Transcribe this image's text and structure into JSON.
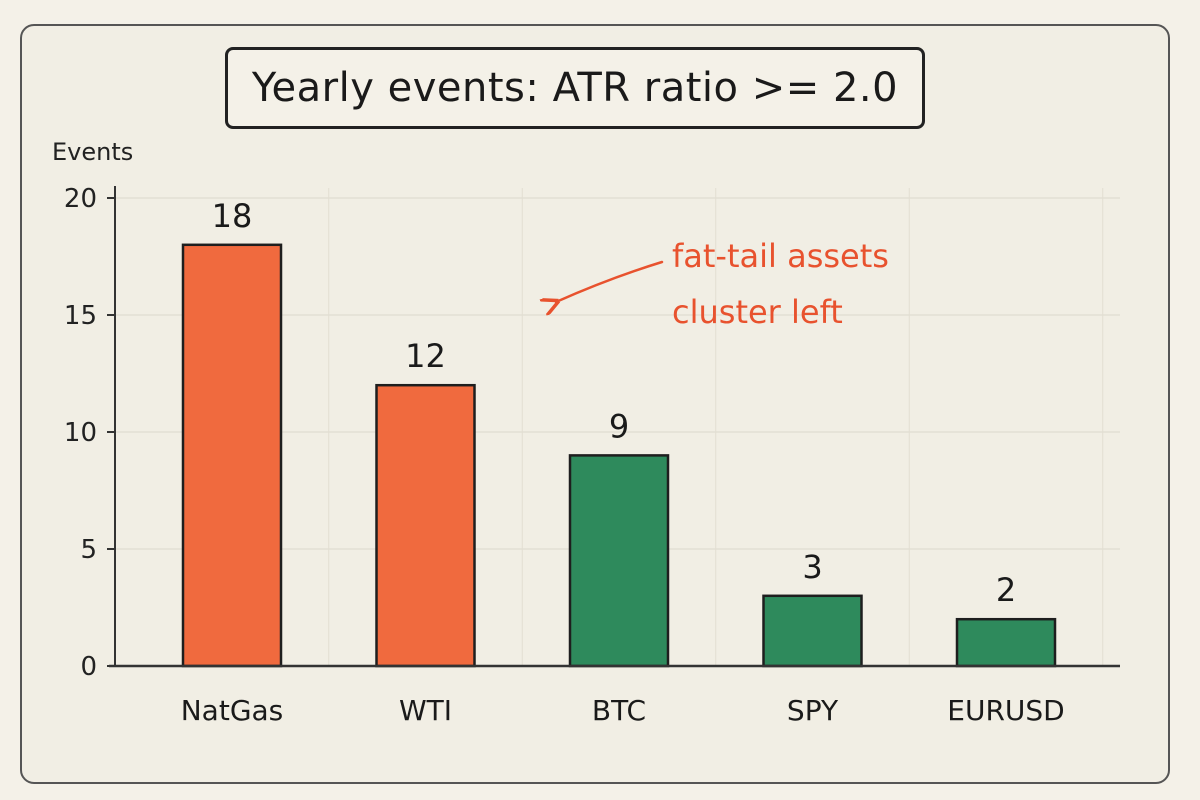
{
  "chart_data": {
    "type": "bar",
    "title": "Yearly events: ATR ratio >= 2.0",
    "ylabel": "Events",
    "xlabel": "",
    "categories": [
      "NatGas",
      "WTI",
      "BTC",
      "SPY",
      "EURUSD"
    ],
    "values": [
      18,
      12,
      9,
      3,
      2
    ],
    "bar_colors": [
      "#f06a3e",
      "#f06a3e",
      "#2e8a5c",
      "#2e8a5c",
      "#2e8a5c"
    ],
    "ylim": [
      0,
      20
    ],
    "yticks": [
      0,
      5,
      10,
      15,
      20
    ],
    "grid": true,
    "annotation": {
      "lines": [
        "fat-tail assets",
        "cluster left"
      ],
      "color": "#e8522e"
    }
  }
}
